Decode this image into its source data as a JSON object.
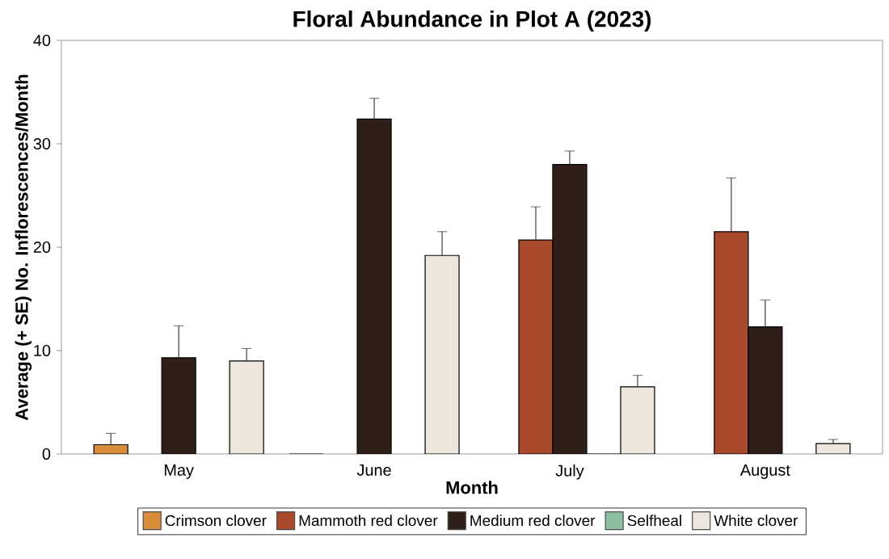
{
  "chart_data": {
    "type": "bar",
    "title": "**Floral Abundance in Plot A (2023)**",
    "xlabel": "**Month**",
    "ylabel": "**Average (+ SE) No. Inflorescences/Month**",
    "categories": [
      "May",
      "June",
      "July",
      "August"
    ],
    "series": [
      {
        "name": "Crimson clover",
        "color": "#d98c3a",
        "values": [
          0.9,
          0,
          null,
          null
        ],
        "errors": [
          1.1,
          null,
          null,
          null
        ]
      },
      {
        "name": "Mammoth red clover",
        "color": "#a94a2c",
        "values": [
          null,
          null,
          20.7,
          21.5
        ],
        "errors": [
          null,
          null,
          3.2,
          5.2
        ]
      },
      {
        "name": "Medium red clover",
        "color": "#2e1f18",
        "values": [
          9.3,
          32.4,
          28.0,
          12.3
        ],
        "errors": [
          3.1,
          2.0,
          1.3,
          2.6
        ]
      },
      {
        "name": "Selfheal",
        "color": "#8cbf9f",
        "values": [
          null,
          null,
          0,
          null
        ]
      },
      {
        "name": "White clover",
        "color": "#ede6dc",
        "values": [
          9.0,
          19.2,
          6.5,
          1.0
        ],
        "errors": [
          1.2,
          2.3,
          1.1,
          0.4
        ]
      }
    ],
    "ylim": [
      0,
      40
    ],
    "yticks": [
      0,
      10,
      20,
      30,
      40
    ],
    "grid": false,
    "legend": "bottom"
  }
}
